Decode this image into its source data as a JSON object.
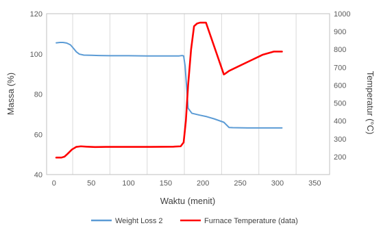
{
  "chart_data": {
    "type": "line",
    "title": "",
    "xlabel": "Waktu (menit)",
    "ylabel": "Massa (%)",
    "y2label": "Temperatur (°C)",
    "xlim": [
      -10,
      370
    ],
    "ylim": [
      40,
      120
    ],
    "y2lim": [
      100,
      1000
    ],
    "xticks": [
      0,
      50,
      100,
      150,
      200,
      250,
      300,
      350
    ],
    "yticks": [
      40,
      60,
      80,
      100,
      120
    ],
    "y2ticks": [
      200,
      300,
      400,
      500,
      600,
      700,
      800,
      900,
      1000
    ],
    "grid": "vertical",
    "legend_position": "bottom",
    "series": [
      {
        "name": "Weight Loss 2",
        "axis": "left",
        "color": "#5B9BD5",
        "x": [
          3,
          8,
          12,
          17,
          22,
          26,
          30,
          34,
          40,
          50,
          60,
          75,
          100,
          125,
          150,
          168,
          172,
          174,
          176,
          180,
          185,
          195,
          205,
          215,
          228,
          235,
          240,
          260,
          280,
          306
        ],
        "y": [
          105.5,
          105.7,
          105.7,
          105.4,
          104.5,
          102.8,
          101.0,
          99.9,
          99.4,
          99.3,
          99.2,
          99.1,
          99.1,
          99.0,
          99.0,
          99.0,
          99.2,
          99.0,
          94.0,
          73.0,
          70.5,
          69.6,
          68.8,
          67.7,
          66.0,
          63.4,
          63.3,
          63.2,
          63.2,
          63.2
        ]
      },
      {
        "name": "Furnace Temperature (data)",
        "axis": "right",
        "color": "#FF0000",
        "x": [
          3,
          10,
          14,
          18,
          24,
          30,
          36,
          44,
          55,
          70,
          100,
          130,
          160,
          170,
          174,
          177,
          180,
          184,
          188,
          192,
          196,
          200,
          204,
          228,
          230,
          235,
          250,
          265,
          280,
          295,
          306
        ],
        "y": [
          195,
          195,
          200,
          215,
          240,
          255,
          258,
          256,
          254,
          255,
          255,
          255,
          256,
          258,
          280,
          400,
          600,
          800,
          930,
          945,
          950,
          950,
          950,
          660,
          665,
          680,
          710,
          740,
          770,
          788,
          788
        ]
      }
    ]
  }
}
